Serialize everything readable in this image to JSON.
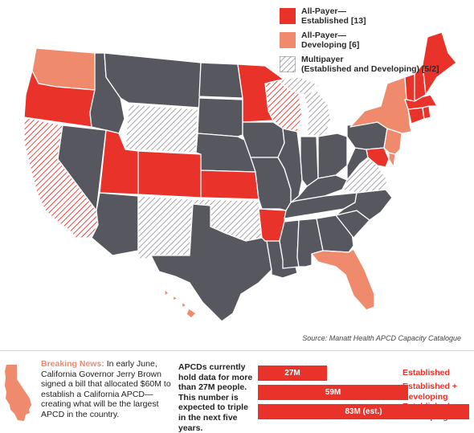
{
  "colors": {
    "established": "#e8322a",
    "developing": "#f08a6c",
    "none": "#575760",
    "multipayer_line": "#8c8c94",
    "border": "#ffffff"
  },
  "legend": [
    {
      "key": "established",
      "label": "All-Payer—",
      "sub": "Established [13]",
      "swatch": "solid-red"
    },
    {
      "key": "developing",
      "label": "All-Payer—",
      "sub": "Developing [6]",
      "swatch": "solid-salmon"
    },
    {
      "key": "multipayer",
      "label": "Multipayer",
      "sub": "(Established and Developing) [5/2]",
      "swatch": "hatched-grey"
    }
  ],
  "states": {
    "established": [
      "OR",
      "UT",
      "CO",
      "KS",
      "MN",
      "AR",
      "MD",
      "ME",
      "VT",
      "NH",
      "MA",
      "RI",
      "CT"
    ],
    "developing": [
      "WA",
      "NY",
      "FL",
      "HI",
      "NJ",
      "DE"
    ],
    "multipayer_established": [
      "WY",
      "NM",
      "OK",
      "VA",
      "MI"
    ],
    "multipayer_developing": [
      "CA",
      "WI"
    ]
  },
  "source": "Source: Manatt Health APCD Capacity Catalogue",
  "news": {
    "heading": "Breaking News:",
    "body": " In early June, California Governor Jerry Brown signed a bill that allocated $60M to establish a California APCD—creating what will be the largest APCD in the country."
  },
  "stat_text": "APCDs currently hold data for more than 27M people. This number is expected to triple in the next five years.",
  "bars": [
    {
      "value_millions": 27,
      "display": "27M",
      "label": "Established"
    },
    {
      "value_millions": 59,
      "display": "59M",
      "label": "Established + Developing"
    },
    {
      "value_millions": 83,
      "display": "83M (est.)",
      "label": "Established + Developing + CA"
    }
  ]
}
